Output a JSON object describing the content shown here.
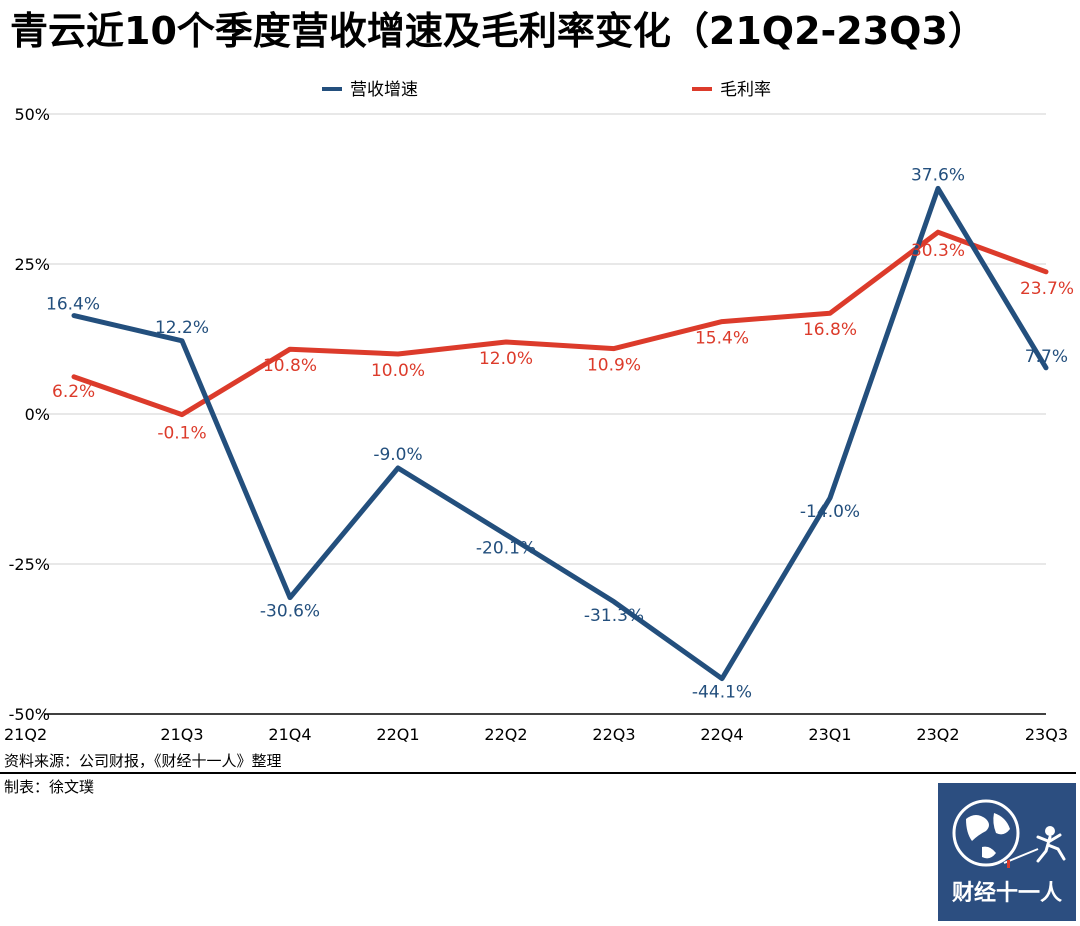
{
  "title": "青云近10个季度营收增速及毛利率变化（21Q2-23Q3）",
  "footer": {
    "source": "资料来源：公司财报，《财经十一人》整理",
    "maker": "制表：徐文璞"
  },
  "logo": {
    "text": "财经十一人",
    "icon": "globe-runner-icon"
  },
  "colors": {
    "revenue": "#234f7d",
    "margin": "#dc3b2b",
    "grid": "#d0d0d0"
  },
  "chart_data": {
    "type": "line",
    "title": "青云近10个季度营收增速及毛利率变化（21Q2-23Q3）",
    "categories": [
      "21Q2",
      "21Q3",
      "21Q4",
      "22Q1",
      "22Q2",
      "22Q3",
      "22Q4",
      "23Q1",
      "23Q2",
      "23Q3"
    ],
    "ylim": [
      -50,
      50
    ],
    "yticks": [
      50,
      25,
      0,
      -25,
      -50
    ],
    "ytick_labels": [
      "50%",
      "25%",
      "0%",
      "-25%",
      "-50%"
    ],
    "grid": true,
    "legend_position": "top-center",
    "series": [
      {
        "name": "营收增速",
        "values": [
          16.4,
          12.2,
          -30.6,
          -9.0,
          -20.1,
          -31.3,
          -44.1,
          -14.0,
          37.6,
          7.7
        ],
        "labels": [
          "16.4%",
          "12.2%",
          "-30.6%",
          "-9.0%",
          "-20.1%",
          "-31.3%",
          "-44.1%",
          "-14.0%",
          "37.6%",
          "7.7%"
        ]
      },
      {
        "name": "毛利率",
        "values": [
          6.2,
          -0.1,
          10.8,
          10.0,
          12.0,
          10.9,
          15.4,
          16.8,
          30.3,
          23.7
        ],
        "labels": [
          "6.2%",
          "-0.1%",
          "10.8%",
          "10.0%",
          "12.0%",
          "10.9%",
          "15.4%",
          "16.8%",
          "30.3%",
          "23.7%"
        ]
      }
    ]
  }
}
